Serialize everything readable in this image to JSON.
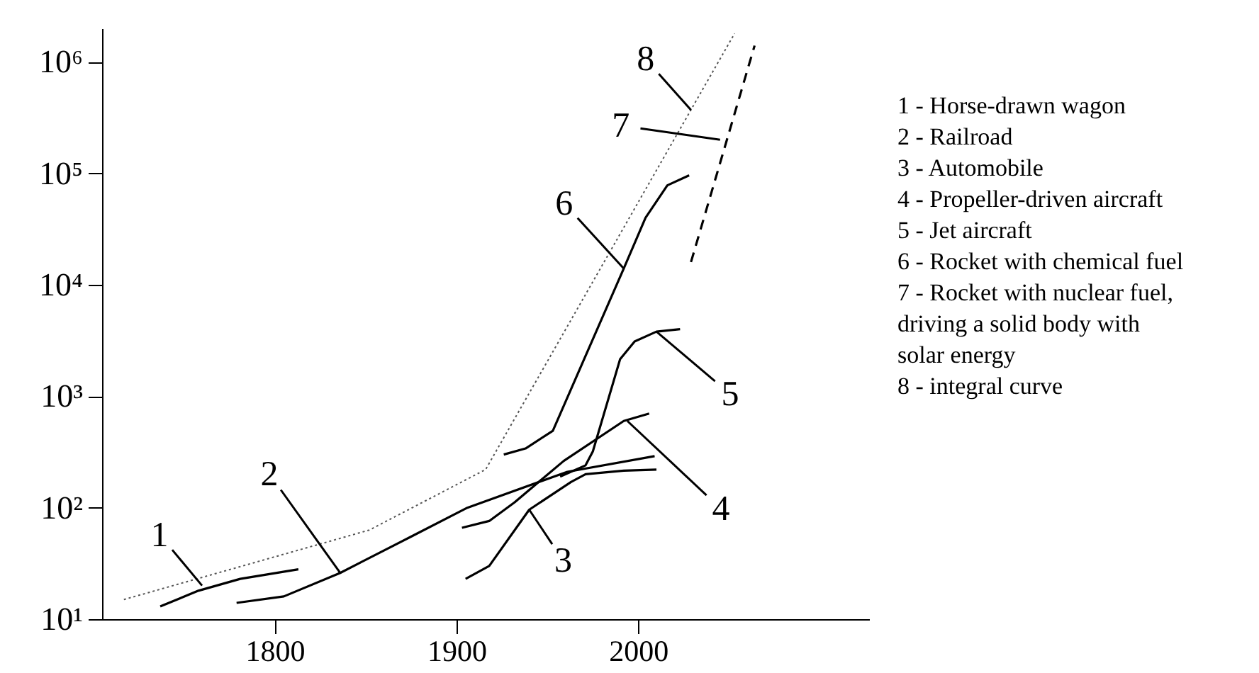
{
  "chart_data": {
    "type": "line",
    "log": "y",
    "grid": false,
    "xlim": [
      1705,
      2127
    ],
    "xticks": [
      1800,
      1900,
      2000
    ],
    "ylim": [
      10,
      2000000
    ],
    "yticks": [
      {
        "value": 10,
        "label": "10¹"
      },
      {
        "value": 100,
        "label": "10²"
      },
      {
        "value": 1000,
        "label": "10³"
      },
      {
        "value": 10000,
        "label": "10⁴"
      },
      {
        "value": 100000,
        "label": "10⁵"
      },
      {
        "value": 1000000,
        "label": "10⁶"
      }
    ],
    "series": [
      {
        "color": "#000000",
        "line_style": "solid",
        "x": [
          1737,
          1758,
          1781,
          1813
        ],
        "values": [
          13,
          18,
          23,
          28
        ]
      },
      {
        "color": "#000000",
        "line_style": "solid",
        "x": [
          1779,
          1805,
          1836,
          1875,
          1906,
          1961,
          2009
        ],
        "values": [
          14,
          16,
          26,
          55,
          100,
          210,
          290
        ]
      },
      {
        "color": "#000000",
        "line_style": "solid",
        "x": [
          1905,
          1918,
          1940,
          1963,
          1971,
          1992,
          2010
        ],
        "values": [
          23,
          30,
          96,
          170,
          200,
          215,
          220
        ]
      },
      {
        "color": "#000000",
        "line_style": "solid",
        "x": [
          1903,
          1918,
          1932,
          1959,
          1992,
          2006
        ],
        "values": [
          66,
          76,
          112,
          263,
          600,
          700
        ]
      },
      {
        "color": "#000000",
        "line_style": "solid",
        "x": [
          1957,
          1971,
          1975,
          1990,
          1998,
          2010,
          2023
        ],
        "values": [
          190,
          240,
          320,
          2150,
          3100,
          3800,
          4000
        ]
      },
      {
        "color": "#000000",
        "line_style": "solid",
        "x": [
          1926,
          1938,
          1953,
          1992,
          2004,
          2016,
          2028
        ],
        "values": [
          300,
          340,
          490,
          14000,
          40000,
          78000,
          96000
        ]
      },
      {
        "color": "#000000",
        "line_style": "dashed",
        "x": [
          2029,
          2064
        ],
        "values": [
          16000,
          1400000
        ]
      },
      {
        "color": "#555555",
        "line_style": "dotted",
        "x": [
          1717,
          1852,
          1916,
          2053
        ],
        "values": [
          15,
          63,
          220,
          1800000
        ]
      }
    ],
    "annotations": [
      {
        "text": "1",
        "x": 1760,
        "y": 20
      },
      {
        "text": "2",
        "x": 1836,
        "y": 26
      },
      {
        "text": "3",
        "x": 1940,
        "y": 96
      },
      {
        "text": "4",
        "x": 1994,
        "y": 600
      },
      {
        "text": "5",
        "x": 2010,
        "y": 3800
      },
      {
        "text": "6",
        "x": 1992,
        "y": 14000
      },
      {
        "text": "7",
        "x": 2045,
        "y": 200000
      },
      {
        "text": "8",
        "x": 2029,
        "y": 370000
      },
      "1 - Horse-drawn wagon",
      "2 - Railroad",
      "3 - Automobile",
      "4 - Propeller-driven aircraft",
      "5 - Jet aircraft",
      "6 - Rocket with chemical fuel",
      "7 - Rocket with nuclear fuel,\n    driving a solid body with\n    solar energy",
      "8 - integral curve"
    ]
  }
}
